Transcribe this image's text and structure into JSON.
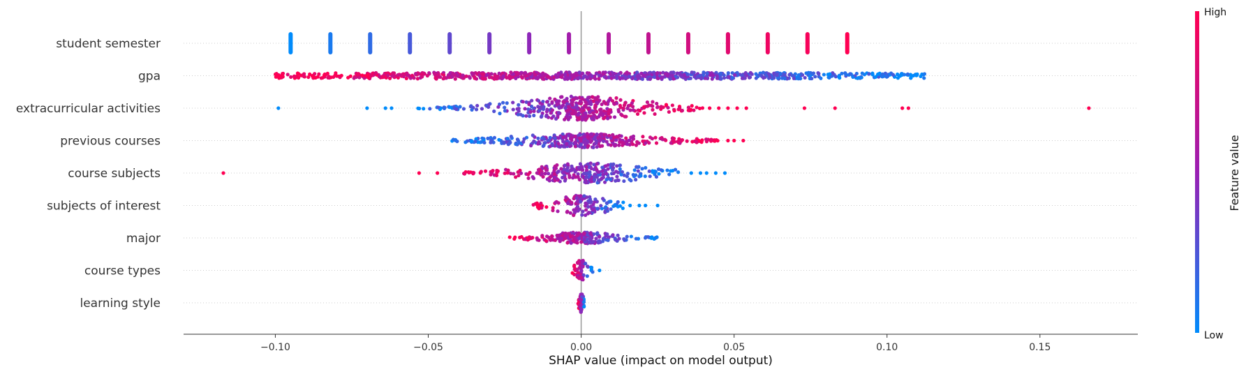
{
  "chart_data": {
    "type": "scatter",
    "subtype": "shap-beeswarm",
    "title": "",
    "xlabel": "SHAP value (impact on model output)",
    "ylabel": "",
    "xlim": [
      -0.13,
      0.182
    ],
    "xticks": [
      -0.1,
      -0.05,
      0.0,
      0.05,
      0.1,
      0.15
    ],
    "xtick_labels": [
      "−0.10",
      "−0.05",
      "0.00",
      "0.05",
      "0.10",
      "0.15"
    ],
    "grid": false,
    "colorbar": {
      "title": "Feature value",
      "low_label": "Low",
      "high_label": "High",
      "low_color": "#008bfb",
      "mid_color": "#9a1fb3",
      "high_color": "#ff0052"
    },
    "features": [
      {
        "name": "student semester",
        "kind": "discrete",
        "values": [
          {
            "x": -0.095,
            "v": 0.0
          },
          {
            "x": -0.082,
            "v": 0.08
          },
          {
            "x": -0.069,
            "v": 0.15
          },
          {
            "x": -0.056,
            "v": 0.23
          },
          {
            "x": -0.043,
            "v": 0.31
          },
          {
            "x": -0.03,
            "v": 0.38
          },
          {
            "x": -0.017,
            "v": 0.46
          },
          {
            "x": -0.004,
            "v": 0.54
          },
          {
            "x": 0.009,
            "v": 0.62
          },
          {
            "x": 0.022,
            "v": 0.69
          },
          {
            "x": 0.035,
            "v": 0.77
          },
          {
            "x": 0.048,
            "v": 0.85
          },
          {
            "x": 0.061,
            "v": 0.92
          },
          {
            "x": 0.074,
            "v": 0.96
          },
          {
            "x": 0.087,
            "v": 1.0
          }
        ]
      },
      {
        "name": "gpa",
        "kind": "distribution",
        "range": [
          -0.1,
          0.115
        ],
        "density_center": 0.007,
        "spread": 0.07,
        "max_height": 5,
        "color_trend": "high-left",
        "outliers": []
      },
      {
        "name": "extracurricular activities",
        "kind": "distribution",
        "range": [
          -0.054,
          0.04
        ],
        "density_center": 0.0,
        "spread": 0.012,
        "max_height": 17,
        "color_trend": "high-right",
        "outliers": [
          -0.099,
          -0.07,
          -0.064,
          -0.062,
          0.042,
          0.045,
          0.048,
          0.051,
          0.054,
          0.073,
          0.083,
          0.105,
          0.107,
          0.166
        ]
      },
      {
        "name": "previous courses",
        "kind": "distribution",
        "range": [
          -0.043,
          0.046
        ],
        "density_center": 0.0,
        "spread": 0.013,
        "max_height": 10,
        "color_trend": "high-right",
        "outliers": [
          0.048,
          0.05,
          0.053
        ]
      },
      {
        "name": "course subjects",
        "kind": "distribution",
        "range": [
          -0.039,
          0.032
        ],
        "density_center": 0.003,
        "spread": 0.011,
        "max_height": 14,
        "color_trend": "high-left",
        "outliers": [
          -0.117,
          -0.053,
          -0.047,
          0.036,
          0.039,
          0.041,
          0.044,
          0.047
        ]
      },
      {
        "name": "subjects of interest",
        "kind": "distribution",
        "range": [
          -0.016,
          0.014
        ],
        "density_center": 0.0,
        "spread": 0.005,
        "max_height": 15,
        "color_trend": "high-left",
        "outliers": [
          0.016,
          0.019,
          0.021,
          0.025
        ]
      },
      {
        "name": "major",
        "kind": "distribution",
        "range": [
          -0.024,
          0.026
        ],
        "density_center": 0.0,
        "spread": 0.007,
        "max_height": 8,
        "color_trend": "high-left",
        "outliers": []
      },
      {
        "name": "course types",
        "kind": "distribution",
        "range": [
          -0.003,
          0.004
        ],
        "density_center": 0.0,
        "spread": 0.0012,
        "max_height": 15,
        "color_trend": "high-left",
        "outliers": [
          0.006
        ]
      },
      {
        "name": "learning style",
        "kind": "distribution",
        "range": [
          -0.001,
          0.001
        ],
        "density_center": 0.0,
        "spread": 0.0004,
        "max_height": 14,
        "color_trend": "high-left",
        "outliers": []
      }
    ]
  }
}
